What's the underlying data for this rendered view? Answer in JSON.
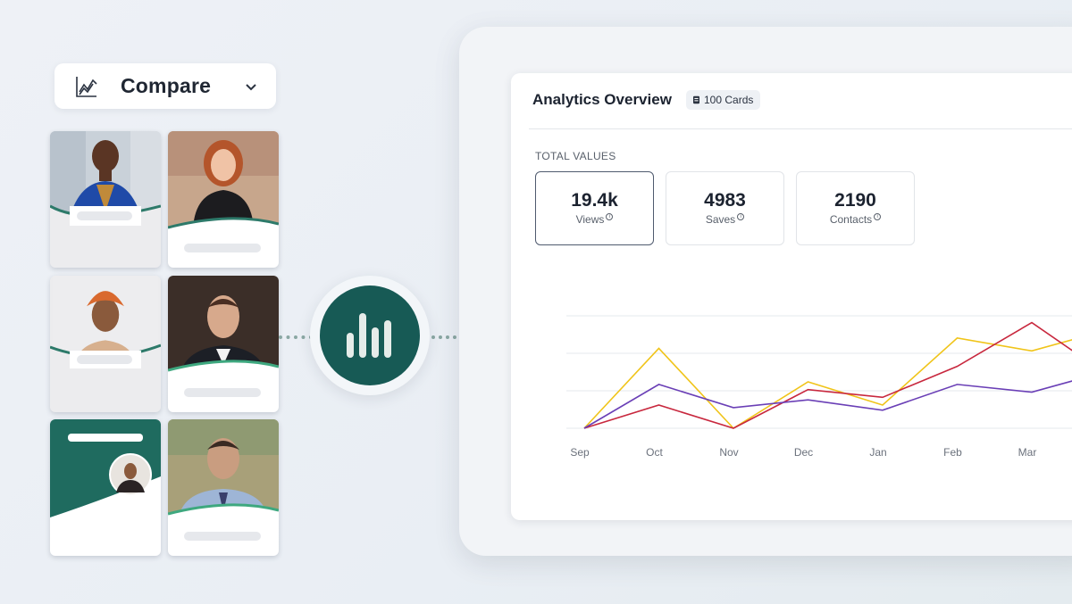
{
  "compare": {
    "label": "Compare",
    "chart_icon": "line-chart-icon",
    "chevron_icon": "chevron-down-icon"
  },
  "hub": {
    "icon": "bar-chart-icon"
  },
  "panel": {
    "title": "Analytics Overview",
    "badge": {
      "icon": "cards-icon",
      "text": "100 Cards"
    },
    "section": "TOTAL VALUES",
    "stats": [
      {
        "value": "19.4k",
        "label": "Views"
      },
      {
        "value": "4983",
        "label": "Saves"
      },
      {
        "value": "2190",
        "label": "Contacts"
      }
    ]
  },
  "colors": {
    "brand": "#175a55",
    "yellow": "#f0c419",
    "red": "#c8283e",
    "purple": "#6a3fb6",
    "wave": "#2d7a6a"
  },
  "chart_data": {
    "type": "line",
    "categories": [
      "Sep",
      "Oct",
      "Nov",
      "Dec",
      "Jan",
      "Feb",
      "Mar",
      ""
    ],
    "series": [
      {
        "color": "#f0c419",
        "values": [
          0,
          3.1,
          0,
          1.8,
          0.9,
          3.5,
          3.0,
          3.8
        ]
      },
      {
        "color": "#c8283e",
        "values": [
          0,
          0.9,
          0,
          1.5,
          1.2,
          2.4,
          4.1,
          2.1
        ]
      },
      {
        "color": "#6a3fb6",
        "values": [
          0,
          1.7,
          0.8,
          1.1,
          0.7,
          1.7,
          1.4,
          2.2
        ]
      }
    ],
    "ylim": [
      0,
      4.5
    ],
    "grid": true
  }
}
